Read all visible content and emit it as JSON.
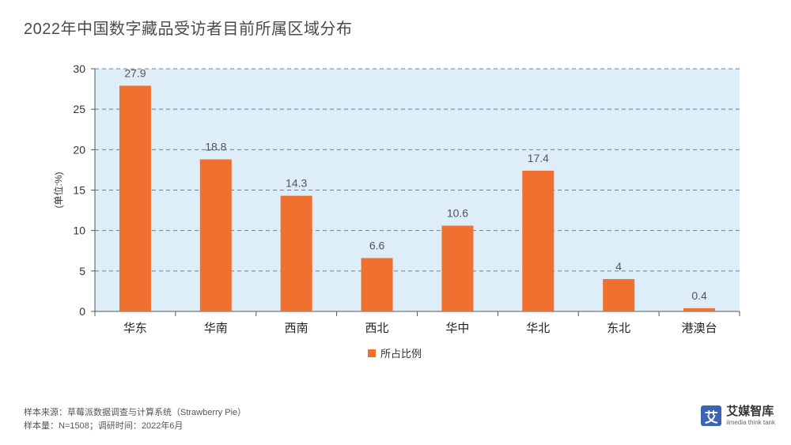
{
  "title": "2022年中国数字藏品受访者目前所属区域分布",
  "chart_data": {
    "type": "bar",
    "categories": [
      "华东",
      "华南",
      "西南",
      "西北",
      "华中",
      "华北",
      "东北",
      "港澳台"
    ],
    "series": [
      {
        "name": "所占比例",
        "values": [
          27.9,
          18.8,
          14.3,
          6.6,
          10.6,
          17.4,
          4,
          0.4
        ],
        "color": "#f07030"
      }
    ],
    "ylabel": "(单位:%)",
    "ylim": [
      0,
      30
    ],
    "yticks": [
      0,
      5,
      10,
      15,
      20,
      25,
      30
    ],
    "value_labels": [
      "27.9",
      "18.8",
      "14.3",
      "6.6",
      "10.6",
      "17.4",
      "4",
      "0.4"
    ],
    "grid": true,
    "legend_position": "bottom",
    "plot_background": "#ddeef9"
  },
  "footer": {
    "source": "样本来源：草莓派数据调查与计算系统（Strawberry Pie）",
    "sample": "样本量：N=1508；调研时间：2022年6月"
  },
  "brand": {
    "badge": "艾",
    "name": "艾媒智库",
    "sub": "iimedia think tank"
  }
}
